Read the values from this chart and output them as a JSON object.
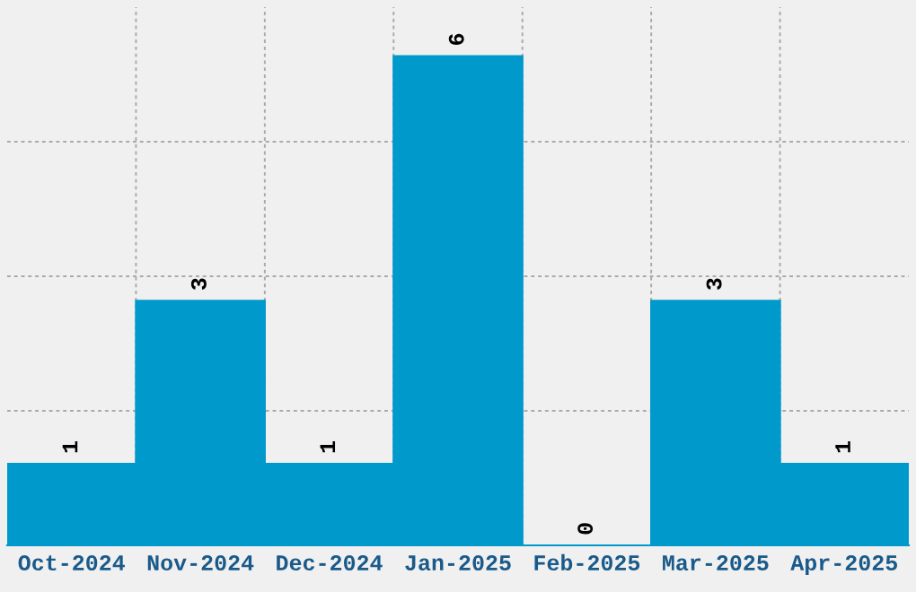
{
  "chart_data": {
    "type": "bar",
    "categories": [
      "Oct-2024",
      "Nov-2024",
      "Dec-2024",
      "Jan-2025",
      "Feb-2025",
      "Mar-2025",
      "Apr-2025"
    ],
    "values": [
      1,
      3,
      1,
      6,
      0,
      3,
      1
    ],
    "color": "#0099cc",
    "ylim": [
      0,
      6.6
    ],
    "yticks": [
      {
        "value": 1.65,
        "label": null
      },
      {
        "value": 3.3,
        "label": null
      },
      {
        "value": 4.95,
        "label": null
      }
    ],
    "tick_labels": "x",
    "grid": true,
    "data_labels": true,
    "legend": false
  }
}
